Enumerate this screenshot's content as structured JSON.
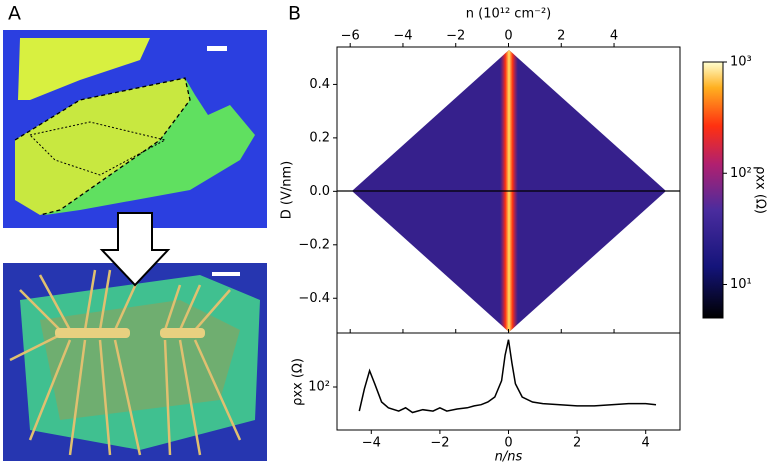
{
  "panel_labels": [
    "A",
    "B"
  ],
  "chart_data": [
    {
      "type": "heatmap",
      "xlabel": "n  (10¹² cm⁻²)",
      "ylabel": "D (V/nm)",
      "xlim": [
        -6.5,
        6.5
      ],
      "xticks": [
        {
          "value": -6,
          "label": "−6"
        },
        {
          "value": -4,
          "label": "−4"
        },
        {
          "value": -2,
          "label": "−2"
        },
        0,
        2,
        4
      ],
      "ylim": [
        -0.53,
        0.54
      ],
      "yticks": [
        {
          "value": -0.4,
          "label": "−0.4"
        },
        {
          "value": -0.2,
          "label": "−0.2"
        },
        {
          "value": 0,
          "label": "0.0"
        },
        0.2,
        0.4
      ],
      "colorbar_label": "ρxx (Ω)",
      "colorbar_log": true,
      "clim": [
        5,
        1000
      ],
      "cticks": [
        {
          "value": 10,
          "label": "10¹"
        },
        {
          "value": 100,
          "label": "10²"
        },
        {
          "value": 1000,
          "label": "10³"
        }
      ]
    },
    {
      "type": "line",
      "xlabel": "n/ns",
      "ylabel": "ρxx (Ω)",
      "log_y": true,
      "xlim": [
        -5,
        5
      ],
      "xticks": [
        {
          "value": -4,
          "label": "−4"
        },
        {
          "value": -2,
          "label": "−2"
        },
        0,
        2,
        4
      ],
      "ylim": [
        29,
        473
      ],
      "yticks": [
        {
          "value": 100,
          "label": "10²"
        }
      ],
      "series": [
        {
          "color": "#000000",
          "x": [
            -4.35,
            -4.2,
            -4.05,
            -3.9,
            -3.7,
            -3.5,
            -3.2,
            -3.0,
            -2.8,
            -2.5,
            -2.2,
            -2.0,
            -1.8,
            -1.5,
            -1.2,
            -1.0,
            -0.8,
            -0.6,
            -0.4,
            -0.2,
            -0.1,
            0.0,
            0.1,
            0.2,
            0.4,
            0.7,
            1.0,
            1.5,
            2.0,
            2.5,
            3.0,
            3.5,
            4.0,
            4.3
          ],
          "values": [
            50,
            95,
            160,
            110,
            65,
            55,
            50,
            55,
            48,
            52,
            50,
            55,
            50,
            53,
            55,
            58,
            60,
            65,
            75,
            120,
            250,
            390,
            200,
            110,
            75,
            65,
            62,
            60,
            58,
            58,
            60,
            62,
            62,
            60
          ]
        }
      ]
    }
  ]
}
